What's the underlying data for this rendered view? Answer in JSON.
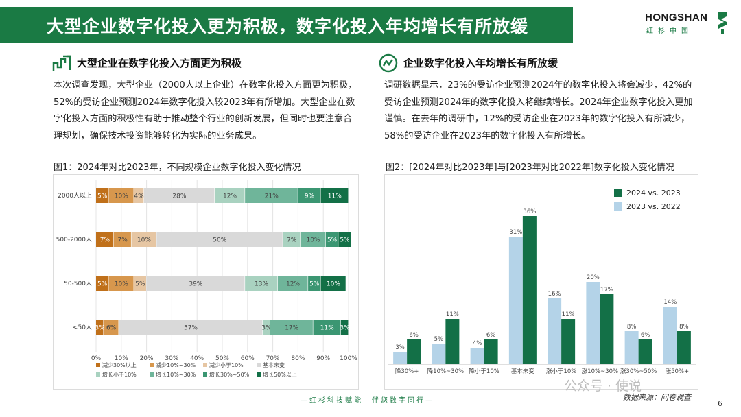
{
  "header": {
    "title": "大型企业数字化投入更为积极，数字化投入年均增长有所放缓",
    "logo_main": "HONGSHAN",
    "logo_sub": "红杉中国"
  },
  "left": {
    "heading": "大型企业在数字化投入方面更为积极",
    "paragraph": "本次调查发现，大型企业（2000人以上企业）在数字化投入方面更为积极，52%的受访企业预测2024年数字化投入较2023年有所增加。大型企业在数字化投入方面的积极性有助于推动整个行业的创新发展，但同时也要注意合理规划，确保技术投资能够转化为实际的业务成果。",
    "figure_title": "图1：2024年对比2023年，不同规模企业数字化投入变化情况"
  },
  "right": {
    "heading": "企业数字化投入年均增长有所放缓",
    "paragraph": "调研数据显示，23%的受访企业预测2024年的数字化投入将会减少，42%的受访企业预测2024年的数字化投入将继续增长。2024年企业数字化投入更加谨慎。在去年的调研中，12%的受访企业在2023年的数字化投入有所减少，58%的受访企业在2023年的数字化投入有所增长。",
    "figure_title": "图2：[2024年对比2023年]与[2023年对比2022年]数字化投入变化情况"
  },
  "chart_data": [
    {
      "type": "bar",
      "orientation": "horizontal",
      "stacked": true,
      "categories": [
        "2000人以上",
        "500-2000人",
        "50-500人",
        "<50人"
      ],
      "series": [
        {
          "name": "减少30%以上",
          "color": "#c0701a",
          "values": [
            5,
            7,
            5,
            3
          ]
        },
        {
          "name": "减少10%~30%",
          "color": "#d7974d",
          "values": [
            10,
            7,
            10,
            6
          ]
        },
        {
          "name": "减少小于10%",
          "color": "#e6c6a3",
          "values": [
            4,
            10,
            5,
            0
          ]
        },
        {
          "name": "基本未变",
          "color": "#d9d9d9",
          "values": [
            28,
            50,
            39,
            57
          ]
        },
        {
          "name": "增长小于10%",
          "color": "#a9d2c0",
          "values": [
            12,
            7,
            13,
            3
          ]
        },
        {
          "name": "增长10%~30%",
          "color": "#6fb59a",
          "values": [
            21,
            10,
            12,
            17
          ]
        },
        {
          "name": "增长30%~50%",
          "color": "#3b9672",
          "values": [
            9,
            5,
            5,
            11
          ]
        },
        {
          "name": "增长50%以上",
          "color": "#137047",
          "values": [
            11,
            5,
            10,
            3
          ]
        }
      ],
      "labels": [
        [
          "5%",
          "10%",
          "4%",
          "28%",
          "12%",
          "21%",
          "9%",
          "11%"
        ],
        [
          "7%",
          "7%",
          "10%",
          "50%",
          "7%",
          "10%",
          "5%",
          "5%"
        ],
        [
          "5%",
          "10%",
          "5%",
          "39%",
          "13%",
          "12%",
          "5%",
          "10%"
        ],
        [
          "3%",
          "6%",
          "",
          "57%",
          "3%",
          "17%",
          "11%",
          "3%"
        ]
      ],
      "xticks": [
        "0%",
        "10%",
        "20%",
        "30%",
        "40%",
        "50%",
        "60%",
        "70%",
        "80%",
        "90%",
        "100%"
      ],
      "xlim": [
        0,
        100
      ],
      "legend": "bottom"
    },
    {
      "type": "bar",
      "categories": [
        "降30%+",
        "降10%~30%",
        "降小于10%",
        "基本未变",
        "涨小于10%",
        "涨10%~30%",
        "涨30%~50%",
        "涨50%+"
      ],
      "series": [
        {
          "name": "2024 vs. 2023",
          "color": "#137047",
          "values": [
            6,
            11,
            6,
            36,
            11,
            17,
            6,
            8
          ]
        },
        {
          "name": "2023 vs. 2022",
          "color": "#b4d3e8",
          "values": [
            3,
            5,
            4,
            31,
            16,
            20,
            8,
            14
          ]
        }
      ],
      "ylim": [
        0,
        40
      ],
      "legend": "top-right"
    }
  ],
  "footer": {
    "slogan": "—红杉科技赋能　伴您数字同行—",
    "source": "数据来源：问卷调查",
    "watermark": "公众号 · 使说",
    "page": "6"
  }
}
